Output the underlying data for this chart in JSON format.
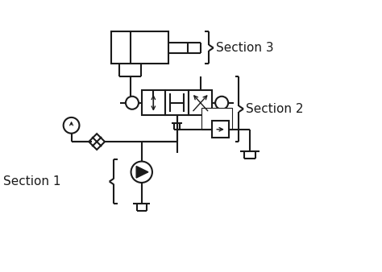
{
  "bg_color": "#ffffff",
  "line_color": "#1a1a1a",
  "text_color": "#1a1a1a",
  "section1_label": "Section 1",
  "section2_label": "Section 2",
  "section3_label": "Section 3"
}
